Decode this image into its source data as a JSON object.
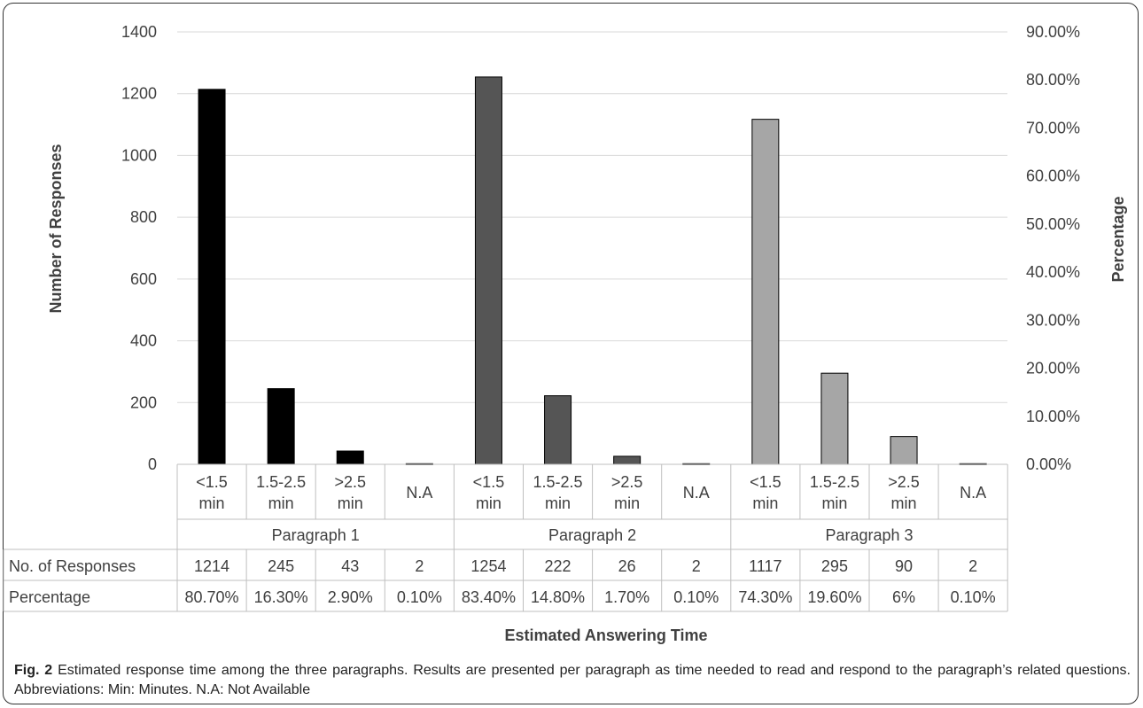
{
  "chart_data": {
    "type": "bar",
    "title": "",
    "xlabel": "Estimated Answering Time",
    "ylabel": "Number of Responses",
    "ylabel_right": "Percentage",
    "ylim": [
      0,
      1400
    ],
    "ylim_right": [
      0,
      90
    ],
    "yticks": [
      "0",
      "200",
      "400",
      "600",
      "800",
      "1000",
      "1200",
      "1400"
    ],
    "yticks_right": [
      "0.00%",
      "10.00%",
      "20.00%",
      "30.00%",
      "40.00%",
      "50.00%",
      "60.00%",
      "70.00%",
      "80.00%",
      "90.00%"
    ],
    "grid": true,
    "groups": [
      {
        "name": "Paragraph 1",
        "color": "#000000",
        "categories": [
          [
            "<1.5",
            "min"
          ],
          [
            "1.5-2.5",
            "min"
          ],
          [
            ">2.5",
            "min"
          ],
          [
            "N.A"
          ]
        ],
        "values": [
          1214,
          245,
          43,
          2
        ],
        "percentages": [
          "80.70%",
          "16.30%",
          "2.90%",
          "0.10%"
        ]
      },
      {
        "name": "Paragraph 2",
        "color": "#555555",
        "categories": [
          [
            "<1.5",
            "min"
          ],
          [
            "1.5-2.5",
            "min"
          ],
          [
            ">2.5",
            "min"
          ],
          [
            "N.A"
          ]
        ],
        "values": [
          1254,
          222,
          26,
          2
        ],
        "percentages": [
          "83.40%",
          "14.80%",
          "1.70%",
          "0.10%"
        ]
      },
      {
        "name": "Paragraph 3",
        "color": "#a6a6a6",
        "categories": [
          [
            "<1.5",
            "min"
          ],
          [
            "1.5-2.5",
            "min"
          ],
          [
            ">2.5",
            "min"
          ],
          [
            "N.A"
          ]
        ],
        "values": [
          1117,
          295,
          90,
          2
        ],
        "percentages": [
          "74.30%",
          "19.60%",
          "6%",
          "0.10%"
        ]
      }
    ],
    "table_rows": [
      "No. of Responses",
      "Percentage"
    ]
  },
  "caption": {
    "label": "Fig. 2",
    "text": " Estimated response time among the three paragraphs. Results are presented per paragraph as time needed to read and respond to the paragraph’s related questions. Abbreviations: Min: Minutes. N.A: Not Available"
  }
}
